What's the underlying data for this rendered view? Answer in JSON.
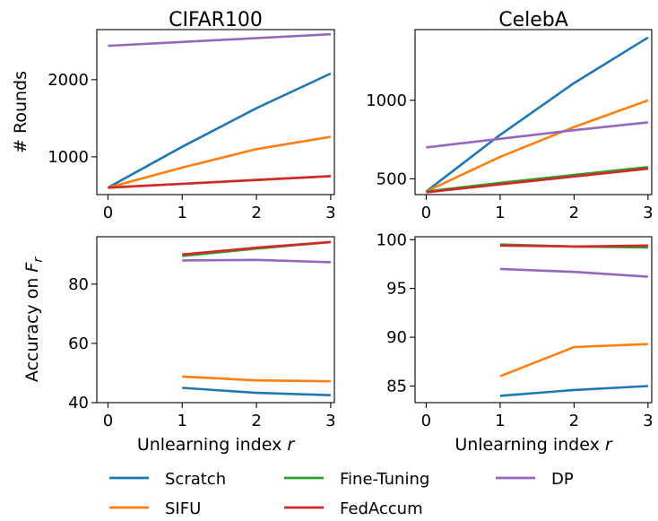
{
  "chart_data": [
    {
      "type": "line",
      "title": "CIFAR100",
      "xlabel": "",
      "ylabel": "# Rounds",
      "xlim": [
        -0.15,
        3.05
      ],
      "ylim": [
        510,
        2650
      ],
      "xticks": [
        0,
        1,
        2,
        3
      ],
      "yticks": [
        1000,
        2000
      ],
      "series": [
        {
          "name": "Scratch",
          "x": [
            0,
            1,
            2,
            3
          ],
          "y": [
            600,
            1130,
            1630,
            2080
          ]
        },
        {
          "name": "SIFU",
          "x": [
            0,
            1,
            2,
            3
          ],
          "y": [
            600,
            860,
            1100,
            1260
          ]
        },
        {
          "name": "Fine-Tuning",
          "x": [
            0,
            1,
            2,
            3
          ],
          "y": [
            600,
            650,
            700,
            750
          ]
        },
        {
          "name": "FedAccum",
          "x": [
            0,
            1,
            2,
            3
          ],
          "y": [
            600,
            650,
            700,
            750
          ]
        },
        {
          "name": "DP",
          "x": [
            0,
            1,
            2,
            3
          ],
          "y": [
            2440,
            2490,
            2540,
            2590
          ]
        }
      ]
    },
    {
      "type": "line",
      "title": "CelebA",
      "xlabel": "",
      "ylabel": "",
      "xlim": [
        -0.15,
        3.05
      ],
      "ylim": [
        400,
        1450
      ],
      "xticks": [
        0,
        1,
        2,
        3
      ],
      "yticks": [
        500,
        1000
      ],
      "series": [
        {
          "name": "Scratch",
          "x": [
            0,
            1,
            2,
            3
          ],
          "y": [
            420,
            780,
            1110,
            1400
          ]
        },
        {
          "name": "SIFU",
          "x": [
            0,
            1,
            2,
            3
          ],
          "y": [
            420,
            640,
            830,
            1000
          ]
        },
        {
          "name": "Fine-Tuning",
          "x": [
            0,
            1,
            2,
            3
          ],
          "y": [
            420,
            475,
            525,
            575
          ]
        },
        {
          "name": "FedAccum",
          "x": [
            0,
            1,
            2,
            3
          ],
          "y": [
            415,
            465,
            515,
            565
          ]
        },
        {
          "name": "DP",
          "x": [
            0,
            1,
            2,
            3
          ],
          "y": [
            700,
            755,
            810,
            860
          ]
        }
      ]
    },
    {
      "type": "line",
      "title": "",
      "xlabel": "Unlearning index r",
      "ylabel": "Accuracy on F_r",
      "xlim": [
        -0.15,
        3.05
      ],
      "ylim": [
        40,
        96
      ],
      "xticks": [
        0,
        1,
        2,
        3
      ],
      "yticks": [
        40,
        60,
        80
      ],
      "series": [
        {
          "name": "Scratch",
          "x": [
            1,
            2,
            3
          ],
          "y": [
            45.0,
            43.3,
            42.5
          ]
        },
        {
          "name": "SIFU",
          "x": [
            1,
            2,
            3
          ],
          "y": [
            48.8,
            47.5,
            47.2
          ]
        },
        {
          "name": "Fine-Tuning",
          "x": [
            1,
            2,
            3
          ],
          "y": [
            89.5,
            92.0,
            94.2
          ]
        },
        {
          "name": "FedAccum",
          "x": [
            1,
            2,
            3
          ],
          "y": [
            90.0,
            92.3,
            94.2
          ]
        },
        {
          "name": "DP",
          "x": [
            1,
            2,
            3
          ],
          "y": [
            88.0,
            88.2,
            87.4
          ]
        }
      ]
    },
    {
      "type": "line",
      "title": "",
      "xlabel": "Unlearning index r",
      "ylabel": "",
      "xlim": [
        -0.15,
        3.05
      ],
      "ylim": [
        83.3,
        100.3
      ],
      "xticks": [
        0,
        1,
        2,
        3
      ],
      "yticks": [
        85,
        90,
        95,
        100
      ],
      "series": [
        {
          "name": "Scratch",
          "x": [
            1,
            2,
            3
          ],
          "y": [
            84.0,
            84.6,
            85.0
          ]
        },
        {
          "name": "SIFU",
          "x": [
            1,
            2,
            3
          ],
          "y": [
            86.0,
            89.0,
            89.3
          ]
        },
        {
          "name": "Fine-Tuning",
          "x": [
            1,
            2,
            3
          ],
          "y": [
            99.5,
            99.3,
            99.2
          ]
        },
        {
          "name": "FedAccum",
          "x": [
            1,
            2,
            3
          ],
          "y": [
            99.4,
            99.3,
            99.4
          ]
        },
        {
          "name": "DP",
          "x": [
            1,
            2,
            3
          ],
          "y": [
            97.0,
            96.7,
            96.2
          ]
        }
      ]
    }
  ],
  "legend": {
    "placement": "bottom",
    "entries": [
      {
        "name": "Scratch",
        "color": "#1f77b4"
      },
      {
        "name": "SIFU",
        "color": "#ff7f0e"
      },
      {
        "name": "Fine-Tuning",
        "color": "#2ca02c"
      },
      {
        "name": "FedAccum",
        "color": "#d62728"
      },
      {
        "name": "DP",
        "color": "#9467bd"
      }
    ]
  },
  "series_colors": {
    "Scratch": "#1f77b4",
    "SIFU": "#ff7f0e",
    "Fine-Tuning": "#2ca02c",
    "FedAccum": "#d62728",
    "DP": "#9467bd"
  }
}
